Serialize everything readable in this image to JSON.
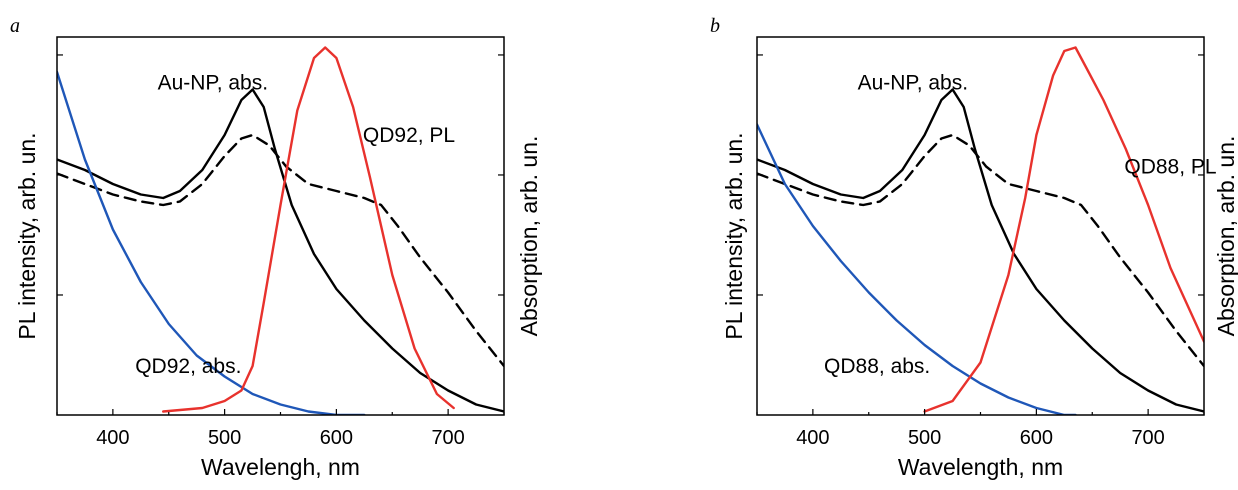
{
  "chart_data": [
    {
      "panel": "a",
      "type": "line",
      "xlabel": "Wavelengh, nm",
      "ylabel_left": "PL intensity, arb. un.",
      "ylabel_right": "Absorption, arb. un.",
      "xlim": [
        350,
        750
      ],
      "ylim": [
        0,
        1.08
      ],
      "xticks": [
        400,
        500,
        600,
        700
      ],
      "annotations": [
        {
          "text": "Au-NP, abs.",
          "x": 440,
          "y": 0.93
        },
        {
          "text": "QD92, PL",
          "x": 665,
          "y": 0.78
        },
        {
          "text": "QD92, abs.",
          "x": 420,
          "y": 0.12
        }
      ],
      "series": [
        {
          "color": "#000000",
          "dash": "solid",
          "x": [
            350,
            375,
            400,
            425,
            445,
            460,
            480,
            500,
            515,
            525,
            535,
            545,
            560,
            580,
            600,
            625,
            650,
            675,
            700,
            725,
            750
          ],
          "y": [
            0.73,
            0.7,
            0.66,
            0.63,
            0.62,
            0.64,
            0.7,
            0.8,
            0.9,
            0.93,
            0.88,
            0.76,
            0.6,
            0.46,
            0.36,
            0.27,
            0.19,
            0.12,
            0.07,
            0.03,
            0.01
          ]
        },
        {
          "color": "#000000",
          "dash": "dashed",
          "x": [
            350,
            375,
            400,
            425,
            445,
            460,
            480,
            500,
            515,
            525,
            540,
            555,
            575,
            600,
            625,
            640,
            655,
            675,
            700,
            725,
            750
          ],
          "y": [
            0.69,
            0.66,
            0.63,
            0.61,
            0.6,
            0.61,
            0.66,
            0.74,
            0.79,
            0.8,
            0.77,
            0.71,
            0.66,
            0.64,
            0.62,
            0.6,
            0.54,
            0.45,
            0.35,
            0.24,
            0.14
          ]
        },
        {
          "color": "#1f57b8",
          "dash": "solid",
          "x": [
            350,
            375,
            400,
            425,
            450,
            475,
            500,
            525,
            550,
            575,
            600,
            625
          ],
          "y": [
            0.98,
            0.73,
            0.53,
            0.38,
            0.26,
            0.17,
            0.11,
            0.06,
            0.03,
            0.01,
            0.0,
            0.0
          ]
        },
        {
          "color": "#e8322d",
          "dash": "solid",
          "x": [
            445,
            480,
            500,
            515,
            525,
            535,
            550,
            565,
            580,
            590,
            600,
            615,
            630,
            650,
            670,
            690,
            705
          ],
          "y": [
            0.01,
            0.02,
            0.04,
            0.07,
            0.14,
            0.32,
            0.6,
            0.87,
            1.02,
            1.05,
            1.02,
            0.88,
            0.68,
            0.4,
            0.19,
            0.06,
            0.02
          ]
        }
      ]
    },
    {
      "panel": "b",
      "type": "line",
      "xlabel": "Wavelength, nm",
      "ylabel_left": "PL intensity, arb. un.",
      "ylabel_right": "Absorption, arb. un.",
      "xlim": [
        350,
        750
      ],
      "ylim": [
        0,
        1.08
      ],
      "xticks": [
        400,
        500,
        600,
        700
      ],
      "annotations": [
        {
          "text": "Au-NP, abs.",
          "x": 440,
          "y": 0.93
        },
        {
          "text": "QD88, PL",
          "x": 720,
          "y": 0.69
        },
        {
          "text": "QD88, abs.",
          "x": 410,
          "y": 0.12
        }
      ],
      "series": [
        {
          "color": "#000000",
          "dash": "solid",
          "x": [
            350,
            375,
            400,
            425,
            445,
            460,
            480,
            500,
            515,
            525,
            535,
            545,
            560,
            580,
            600,
            625,
            650,
            675,
            700,
            725,
            750
          ],
          "y": [
            0.73,
            0.7,
            0.66,
            0.63,
            0.62,
            0.64,
            0.7,
            0.8,
            0.9,
            0.93,
            0.88,
            0.76,
            0.6,
            0.46,
            0.36,
            0.27,
            0.19,
            0.12,
            0.07,
            0.03,
            0.01
          ]
        },
        {
          "color": "#000000",
          "dash": "dashed",
          "x": [
            350,
            375,
            400,
            425,
            445,
            460,
            480,
            500,
            515,
            525,
            540,
            555,
            575,
            600,
            625,
            640,
            655,
            675,
            700,
            725,
            750
          ],
          "y": [
            0.69,
            0.66,
            0.63,
            0.61,
            0.6,
            0.61,
            0.66,
            0.74,
            0.79,
            0.8,
            0.77,
            0.71,
            0.66,
            0.64,
            0.62,
            0.6,
            0.54,
            0.45,
            0.35,
            0.24,
            0.14
          ]
        },
        {
          "color": "#1f57b8",
          "dash": "solid",
          "x": [
            350,
            375,
            400,
            425,
            450,
            475,
            500,
            525,
            550,
            575,
            600,
            625,
            635
          ],
          "y": [
            0.83,
            0.66,
            0.54,
            0.44,
            0.35,
            0.27,
            0.2,
            0.14,
            0.09,
            0.05,
            0.02,
            0.0,
            0.0
          ]
        },
        {
          "color": "#e8322d",
          "dash": "solid",
          "x": [
            500,
            525,
            550,
            575,
            590,
            600,
            615,
            625,
            635,
            645,
            660,
            680,
            700,
            720,
            750
          ],
          "y": [
            0.01,
            0.04,
            0.15,
            0.4,
            0.62,
            0.8,
            0.97,
            1.04,
            1.05,
            0.99,
            0.9,
            0.76,
            0.6,
            0.42,
            0.21
          ]
        }
      ]
    }
  ]
}
